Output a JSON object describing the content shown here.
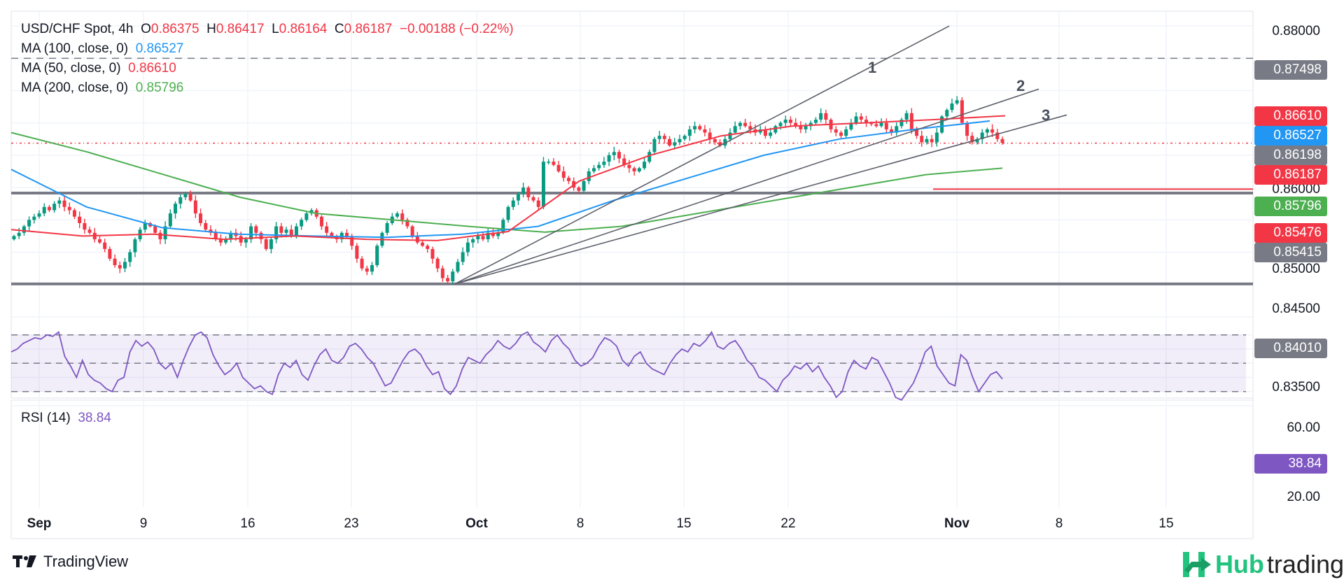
{
  "header": {
    "symbol": "USD/CHF Spot, 4h",
    "o_label": "O",
    "o_value": "0.86375",
    "h_label": "H",
    "h_value": "0.86417",
    "l_label": "L",
    "l_value": "0.86164",
    "c_label": "C",
    "c_value": "0.86187",
    "change": "−0.00188 (−0.22%)"
  },
  "indicators": [
    {
      "label": "MA (100, close, 0)",
      "value": "0.86527",
      "color": "#2196f3"
    },
    {
      "label": "MA (50, close, 0)",
      "value": "0.86610",
      "color": "#f23645"
    },
    {
      "label": "MA (200, close, 0)",
      "value": "0.85796",
      "color": "#4caf50"
    }
  ],
  "rsi": {
    "label": "RSI (14)",
    "value": "38.84",
    "color": "#7e57c2"
  },
  "price_axis": [
    "0.88000",
    "0.86000",
    "0.85000",
    "0.84500",
    "0.83500"
  ],
  "price_tags": [
    {
      "value": "0.87498",
      "color": "#787b86"
    },
    {
      "value": "0.86610",
      "color": "#f23645"
    },
    {
      "value": "0.86527",
      "color": "#2196f3"
    },
    {
      "value": "0.86198",
      "color": "#787b86"
    },
    {
      "value": "0.86187",
      "color": "#f23645"
    },
    {
      "value": "0.85796",
      "color": "#4caf50"
    },
    {
      "value": "0.85476",
      "color": "#f23645"
    },
    {
      "value": "0.85415",
      "color": "#787b86"
    },
    {
      "value": "0.84010",
      "color": "#787b86"
    }
  ],
  "rsi_axis": [
    "60.00",
    "20.00"
  ],
  "rsi_tag": {
    "value": "38.84",
    "color": "#7e57c2"
  },
  "x_ticks": [
    {
      "label": "Sep",
      "bold": true
    },
    {
      "label": "9",
      "bold": false
    },
    {
      "label": "16",
      "bold": false
    },
    {
      "label": "23",
      "bold": false
    },
    {
      "label": "Oct",
      "bold": true
    },
    {
      "label": "8",
      "bold": false
    },
    {
      "label": "15",
      "bold": false
    },
    {
      "label": "22",
      "bold": false
    },
    {
      "label": "Nov",
      "bold": true
    },
    {
      "label": "8",
      "bold": false
    },
    {
      "label": "15",
      "bold": false
    }
  ],
  "fan_labels": [
    "1",
    "2",
    "3"
  ],
  "branding": {
    "tradingview": "TradingView",
    "hub_a": "Hub",
    "hub_b": "trading"
  },
  "colors": {
    "up": "#089981",
    "down": "#f23645",
    "grid": "#f0f3fa",
    "level": "#787b86"
  },
  "chart_data": {
    "type": "candlestick",
    "title": "USD/CHF Spot, 4h",
    "ylim": [
      0.832,
      0.882
    ],
    "rsi_ylim": [
      10,
      80
    ],
    "horizontal_levels": [
      0.87498,
      0.85415,
      0.8401,
      0.85476
    ],
    "last_price": 0.86187,
    "fan_origin": {
      "date": "Sep 30",
      "price": 0.8401
    },
    "fan_lines_end": [
      {
        "label": "1",
        "price": 0.87998
      },
      {
        "label": "2",
        "price": 0.87023
      },
      {
        "label": "3",
        "price": 0.86623
      }
    ],
    "close_path": [
      0.8475,
      0.848,
      0.849,
      0.85,
      0.8505,
      0.851,
      0.852,
      0.8515,
      0.8525,
      0.853,
      0.852,
      0.8515,
      0.8505,
      0.8495,
      0.8485,
      0.848,
      0.847,
      0.8465,
      0.8455,
      0.844,
      0.843,
      0.8425,
      0.8435,
      0.845,
      0.847,
      0.8485,
      0.8495,
      0.849,
      0.848,
      0.847,
      0.849,
      0.851,
      0.8525,
      0.8535,
      0.854,
      0.853,
      0.851,
      0.8495,
      0.8485,
      0.848,
      0.847,
      0.8465,
      0.847,
      0.848,
      0.8475,
      0.8465,
      0.847,
      0.849,
      0.848,
      0.847,
      0.8455,
      0.847,
      0.849,
      0.848,
      0.8485,
      0.8475,
      0.849,
      0.85,
      0.851,
      0.8515,
      0.8505,
      0.849,
      0.848,
      0.8475,
      0.847,
      0.848,
      0.8475,
      0.846,
      0.844,
      0.8425,
      0.842,
      0.843,
      0.846,
      0.848,
      0.8495,
      0.8505,
      0.851,
      0.85,
      0.849,
      0.8475,
      0.8465,
      0.846,
      0.8455,
      0.844,
      0.8425,
      0.841,
      0.8405,
      0.842,
      0.8435,
      0.845,
      0.8465,
      0.847,
      0.8475,
      0.847,
      0.848,
      0.8475,
      0.848,
      0.85,
      0.852,
      0.853,
      0.854,
      0.855,
      0.8535,
      0.853,
      0.852,
      0.859,
      0.859,
      0.8585,
      0.8575,
      0.8565,
      0.856,
      0.855,
      0.8545,
      0.856,
      0.8575,
      0.858,
      0.8585,
      0.859,
      0.86,
      0.8605,
      0.8595,
      0.8585,
      0.858,
      0.8575,
      0.858,
      0.859,
      0.8605,
      0.8625,
      0.863,
      0.8625,
      0.8615,
      0.862,
      0.8625,
      0.863,
      0.864,
      0.8645,
      0.864,
      0.8635,
      0.8625,
      0.862,
      0.8615,
      0.8625,
      0.8635,
      0.8645,
      0.865,
      0.8645,
      0.864,
      0.8635,
      0.864,
      0.863,
      0.8635,
      0.8645,
      0.865,
      0.8655,
      0.865,
      0.8645,
      0.864,
      0.8645,
      0.865,
      0.8655,
      0.8665,
      0.8655,
      0.864,
      0.8635,
      0.863,
      0.864,
      0.865,
      0.866,
      0.8655,
      0.865,
      0.8648,
      0.8645,
      0.865,
      0.864,
      0.8635,
      0.8645,
      0.8655,
      0.8665,
      0.864,
      0.863,
      0.862,
      0.8625,
      0.862,
      0.8635,
      0.866,
      0.867,
      0.868,
      0.8685,
      0.865,
      0.863,
      0.862,
      0.8625,
      0.8635,
      0.864,
      0.8635,
      0.8625,
      0.8619
    ],
    "ma50_path": [
      0.8485,
      0.8475,
      0.8478,
      0.847,
      0.8475,
      0.847,
      0.8468,
      0.8482,
      0.856,
      0.86,
      0.863,
      0.8645,
      0.865,
      0.8655,
      0.8661
    ],
    "ma100_path": [
      0.8578,
      0.852,
      0.8488,
      0.8478,
      0.8475,
      0.8473,
      0.8478,
      0.849,
      0.853,
      0.8565,
      0.86,
      0.8625,
      0.864,
      0.8653
    ],
    "ma200_path": [
      0.8635,
      0.8605,
      0.857,
      0.8535,
      0.851,
      0.85,
      0.849,
      0.8481,
      0.849,
      0.851,
      0.853,
      0.855,
      0.857,
      0.858
    ],
    "rsi_path": [
      58,
      60,
      64,
      66,
      68,
      67,
      70,
      69,
      72,
      55,
      48,
      40,
      52,
      42,
      38,
      36,
      32,
      30,
      38,
      40,
      58,
      66,
      62,
      65,
      60,
      50,
      46,
      50,
      40,
      52,
      62,
      70,
      72,
      68,
      56,
      48,
      42,
      45,
      50,
      40,
      36,
      32,
      34,
      30,
      28,
      42,
      50,
      47,
      52,
      42,
      38,
      48,
      56,
      60,
      52,
      50,
      54,
      62,
      64,
      60,
      54,
      50,
      42,
      34,
      36,
      44,
      52,
      58,
      60,
      56,
      48,
      42,
      44,
      32,
      28,
      34,
      46,
      54,
      52,
      50,
      56,
      60,
      66,
      62,
      60,
      64,
      70,
      72,
      65,
      62,
      58,
      66,
      70,
      64,
      60,
      52,
      48,
      50,
      54,
      62,
      68,
      66,
      62,
      52,
      48,
      55,
      58,
      50,
      46,
      44,
      42,
      50,
      56,
      60,
      58,
      64,
      62,
      66,
      72,
      62,
      60,
      64,
      66,
      60,
      52,
      48,
      40,
      38,
      34,
      30,
      38,
      42,
      48,
      46,
      50,
      44,
      48,
      40,
      34,
      26,
      30,
      44,
      52,
      48,
      46,
      54,
      52,
      44,
      36,
      26,
      24,
      30,
      36,
      46,
      58,
      62,
      48,
      42,
      36,
      34,
      56,
      52,
      40,
      30,
      36,
      42,
      44,
      38.84
    ]
  }
}
